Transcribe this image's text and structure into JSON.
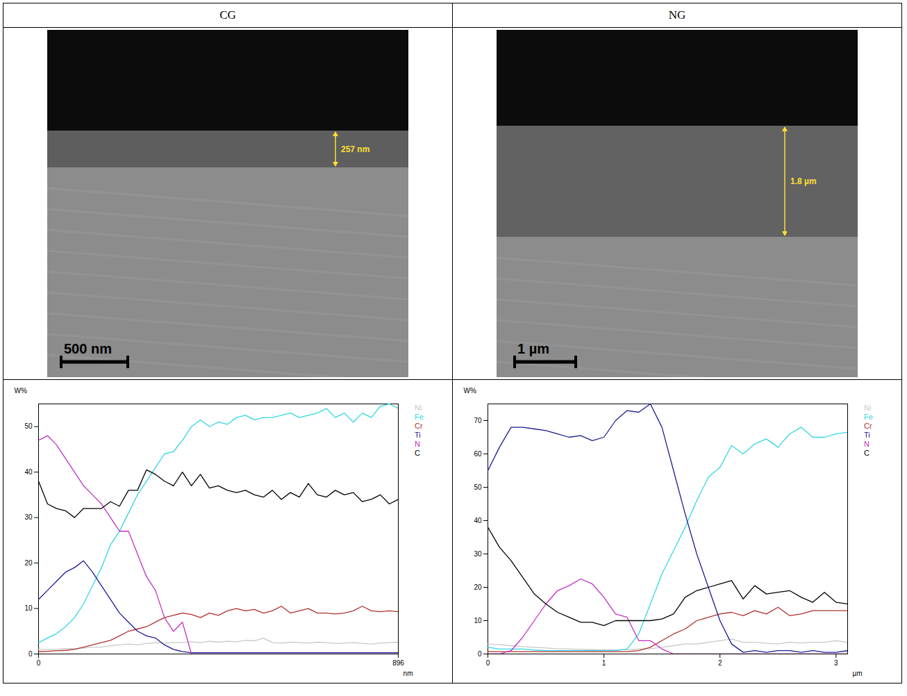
{
  "headers": [
    "CG",
    "NG"
  ],
  "images": [
    {
      "thickness_label": "257 nm",
      "scale_bar_label": "500 nm"
    },
    {
      "thickness_label": "1.8 µm",
      "scale_bar_label": "1 µm"
    }
  ],
  "chart_data": [
    {
      "type": "line",
      "y_label": "W%",
      "x_label": "nm",
      "legend": "right",
      "grid": false,
      "xlim": [
        0,
        896
      ],
      "xticks": [
        0,
        896
      ],
      "ylim": [
        0,
        55
      ],
      "yticks": [
        0,
        10,
        20,
        30,
        40,
        50
      ],
      "x": [
        0,
        22.4,
        44.8,
        67.2,
        89.6,
        112,
        134.4,
        156.8,
        179.2,
        201.6,
        224,
        246.4,
        268.8,
        291.2,
        313.6,
        336,
        358.4,
        380.8,
        403.2,
        425.6,
        448,
        470.4,
        492.8,
        515.2,
        537.6,
        560,
        582.4,
        604.8,
        627.2,
        649.6,
        672,
        694.4,
        716.8,
        739.2,
        761.6,
        784,
        806.4,
        828.8,
        851.2,
        873.6,
        896
      ],
      "series": [
        {
          "name": "Ni",
          "color": "#c8c8c8",
          "values": [
            1,
            1,
            1,
            1.2,
            1.2,
            1.3,
            1.5,
            1.5,
            1.8,
            2,
            2.2,
            2,
            2.3,
            2.5,
            2.4,
            2.5,
            2.5,
            2.7,
            2.5,
            2.8,
            2.6,
            2.8,
            2.7,
            3,
            2.9,
            3.5,
            2.5,
            2.4,
            2.6,
            2.5,
            2.4,
            2.6,
            2.5,
            2.3,
            2.4,
            2.5,
            2.3,
            2.2,
            2.4,
            2.5,
            2.6
          ]
        },
        {
          "name": "Fe",
          "color": "#33d6e0",
          "values": [
            2.5,
            3.5,
            4.5,
            6,
            8,
            11,
            15,
            19,
            24,
            27,
            31,
            35,
            38,
            41,
            44,
            44.5,
            47,
            50,
            51.5,
            50,
            51,
            50.5,
            52,
            52.5,
            51.5,
            52,
            52,
            52.5,
            53,
            52,
            52.5,
            53,
            54,
            52,
            53,
            51,
            53,
            52,
            54.5,
            55,
            54
          ]
        },
        {
          "name": "Cr",
          "color": "#b03030",
          "values": [
            0.5,
            0.6,
            0.7,
            0.8,
            1,
            1.5,
            2,
            2.5,
            3,
            4,
            5,
            5.5,
            6,
            7,
            8,
            8.5,
            9,
            8.7,
            8,
            9,
            8.5,
            9.5,
            10,
            9.5,
            9.8,
            9,
            9.5,
            10.5,
            9,
            9.5,
            10,
            9,
            9,
            8.8,
            9,
            9.5,
            10.5,
            9.5,
            9.3,
            9.5,
            9.3
          ]
        },
        {
          "name": "Ti",
          "color": "#1c1c96",
          "values": [
            12,
            14,
            16,
            18,
            19,
            20.5,
            18,
            15,
            12,
            9,
            7,
            5,
            4,
            3.5,
            2,
            1,
            0.5,
            0.3,
            0.3,
            0.3,
            0.3,
            0.3,
            0.3,
            0.3,
            0.3,
            0.3,
            0.3,
            0.3,
            0.3,
            0.3,
            0.3,
            0.3,
            0.3,
            0.3,
            0.3,
            0.3,
            0.3,
            0.3,
            0.3,
            0.3,
            0.3
          ]
        },
        {
          "name": "N",
          "color": "#c22fc2",
          "values": [
            47,
            48,
            46,
            43,
            40,
            37,
            35,
            33,
            30,
            27,
            27,
            22,
            17,
            14,
            8,
            5,
            7,
            0,
            0,
            0,
            0,
            0,
            0,
            0,
            0,
            0,
            0,
            0,
            0,
            0,
            0,
            0,
            0,
            0,
            0,
            0,
            0,
            0,
            0,
            0,
            0
          ]
        },
        {
          "name": "C",
          "color": "#000000",
          "values": [
            38,
            33,
            32,
            31.5,
            30,
            32,
            32,
            32,
            33.5,
            32.5,
            36,
            36,
            40.5,
            39.5,
            38,
            37,
            40,
            37,
            39.5,
            36.5,
            37,
            36,
            35.5,
            36,
            35,
            34.5,
            36,
            34,
            35.5,
            34.5,
            37.5,
            35,
            34.5,
            36,
            35,
            35.5,
            33.5,
            34,
            35,
            33,
            34
          ]
        }
      ]
    },
    {
      "type": "line",
      "y_label": "W%",
      "x_label": "µm",
      "legend": "right",
      "grid": false,
      "xlim": [
        0,
        3.1
      ],
      "xticks": [
        0,
        1,
        2,
        3
      ],
      "ylim": [
        0,
        75
      ],
      "yticks": [
        0,
        10,
        20,
        30,
        40,
        50,
        60,
        70
      ],
      "x": [
        0,
        0.1,
        0.2,
        0.3,
        0.4,
        0.5,
        0.6,
        0.7,
        0.8,
        0.9,
        1,
        1.1,
        1.2,
        1.3,
        1.4,
        1.5,
        1.6,
        1.7,
        1.8,
        1.9,
        2,
        2.1,
        2.2,
        2.3,
        2.4,
        2.5,
        2.6,
        2.7,
        2.8,
        2.9,
        3,
        3.1
      ],
      "series": [
        {
          "name": "Ni",
          "color": "#c8c8c8",
          "values": [
            3,
            2.8,
            2.5,
            2.2,
            2,
            1.8,
            1.6,
            1.5,
            1.4,
            1.3,
            1.2,
            1.2,
            1.3,
            1.5,
            1.6,
            2,
            2.5,
            3,
            3,
            3.5,
            4,
            4.5,
            3.5,
            3.5,
            3.2,
            3,
            3.5,
            3.3,
            3.5,
            3.5,
            4,
            3.5
          ]
        },
        {
          "name": "Fe",
          "color": "#33d6e0",
          "values": [
            2,
            1.5,
            1.5,
            1.5,
            1.2,
            1,
            1,
            1,
            1,
            1,
            1,
            1,
            1.5,
            6,
            15,
            24,
            31,
            38,
            46,
            53,
            56,
            62.5,
            60,
            63,
            64.5,
            62,
            66,
            68,
            65,
            65,
            66,
            66.5
          ]
        },
        {
          "name": "Cr",
          "color": "#b03030",
          "values": [
            0.7,
            0.7,
            0.7,
            0.7,
            0.7,
            0.7,
            0.7,
            0.7,
            0.7,
            0.7,
            0.7,
            0.7,
            0.7,
            1,
            2,
            4,
            6,
            7.5,
            10,
            11,
            12,
            12.5,
            11.5,
            13,
            12,
            14,
            11.5,
            12,
            13,
            13,
            13,
            13
          ]
        },
        {
          "name": "Ti",
          "color": "#1c1c96",
          "values": [
            55,
            62,
            68,
            68,
            67.5,
            67,
            66,
            65,
            65.5,
            64,
            65,
            70,
            73,
            72.5,
            75,
            68,
            55,
            42,
            30,
            20,
            10,
            3,
            0.5,
            1,
            0.5,
            1,
            1,
            0.5,
            1,
            0.5,
            0.5,
            1
          ]
        },
        {
          "name": "N",
          "color": "#c22fc2",
          "values": [
            0,
            0,
            1,
            5,
            10,
            15,
            19,
            20.5,
            22.5,
            21,
            17,
            12,
            11,
            4,
            4,
            1.5,
            0,
            0,
            0,
            0,
            0,
            0,
            0,
            0,
            0,
            0,
            0,
            0,
            0,
            0,
            0,
            0
          ]
        },
        {
          "name": "C",
          "color": "#000000",
          "values": [
            38,
            32,
            28,
            23,
            18,
            15,
            12.5,
            11,
            9.5,
            9.5,
            8.5,
            10,
            10,
            10,
            10,
            10.5,
            12,
            17,
            19,
            20,
            21,
            22,
            16.5,
            20.5,
            18,
            18.5,
            19,
            17,
            15.5,
            18.5,
            15.5,
            15
          ]
        }
      ]
    }
  ]
}
